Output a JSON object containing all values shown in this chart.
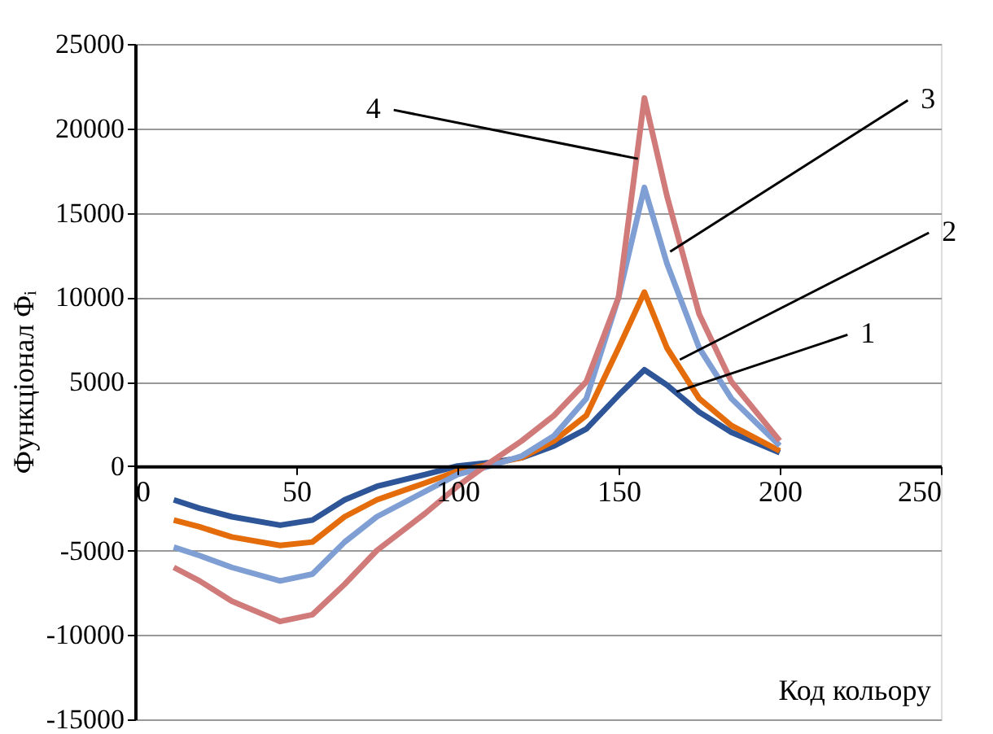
{
  "chart_data": {
    "type": "line",
    "ylabel": "Функціонал Φᵢ",
    "xlabel": "Код кольору",
    "xlim": [
      0,
      250
    ],
    "xticks": [
      0,
      50,
      100,
      150,
      200,
      250
    ],
    "ylim": [
      -15000,
      25000
    ],
    "yticks": [
      -15000,
      -10000,
      -5000,
      0,
      5000,
      10000,
      15000,
      20000,
      25000
    ],
    "grid": "y",
    "legend": false,
    "marker": "none",
    "line_style": "solid",
    "x": [
      12,
      20,
      30,
      45,
      55,
      65,
      75,
      90,
      100,
      110,
      120,
      130,
      140,
      150,
      158,
      165,
      175,
      185,
      200
    ],
    "series": [
      {
        "color": "#2e5597",
        "values": [
          -2000,
          -2500,
          -3000,
          -3500,
          -3200,
          -2000,
          -1200,
          -500,
          0,
          200,
          500,
          1200,
          2200,
          4200,
          5700,
          4800,
          3200,
          2000,
          800
        ]
      },
      {
        "color": "#e46c0a",
        "values": [
          -3200,
          -3600,
          -4200,
          -4700,
          -4500,
          -3000,
          -2000,
          -1000,
          -300,
          100,
          500,
          1500,
          3000,
          7000,
          10300,
          7000,
          4000,
          2400,
          900
        ]
      },
      {
        "color": "#7f9fd4",
        "values": [
          -4800,
          -5300,
          -6000,
          -6800,
          -6400,
          -4500,
          -3000,
          -1500,
          -500,
          0,
          600,
          1800,
          4000,
          10000,
          16500,
          12000,
          7000,
          4000,
          1200
        ]
      },
      {
        "color": "#d07a7a",
        "values": [
          -6000,
          -6800,
          -8000,
          -9200,
          -8800,
          -7000,
          -5000,
          -2800,
          -1200,
          200,
          1500,
          3000,
          5000,
          10000,
          21800,
          16000,
          9000,
          5000,
          1500
        ]
      }
    ],
    "annotations": [
      {
        "text": "1",
        "x": 168,
        "y": 4400
      },
      {
        "text": "2",
        "x": 169,
        "y": 6300
      },
      {
        "text": "3",
        "x": 166,
        "y": 12700
      },
      {
        "text": "4",
        "x": 156,
        "y": 18200
      }
    ]
  }
}
